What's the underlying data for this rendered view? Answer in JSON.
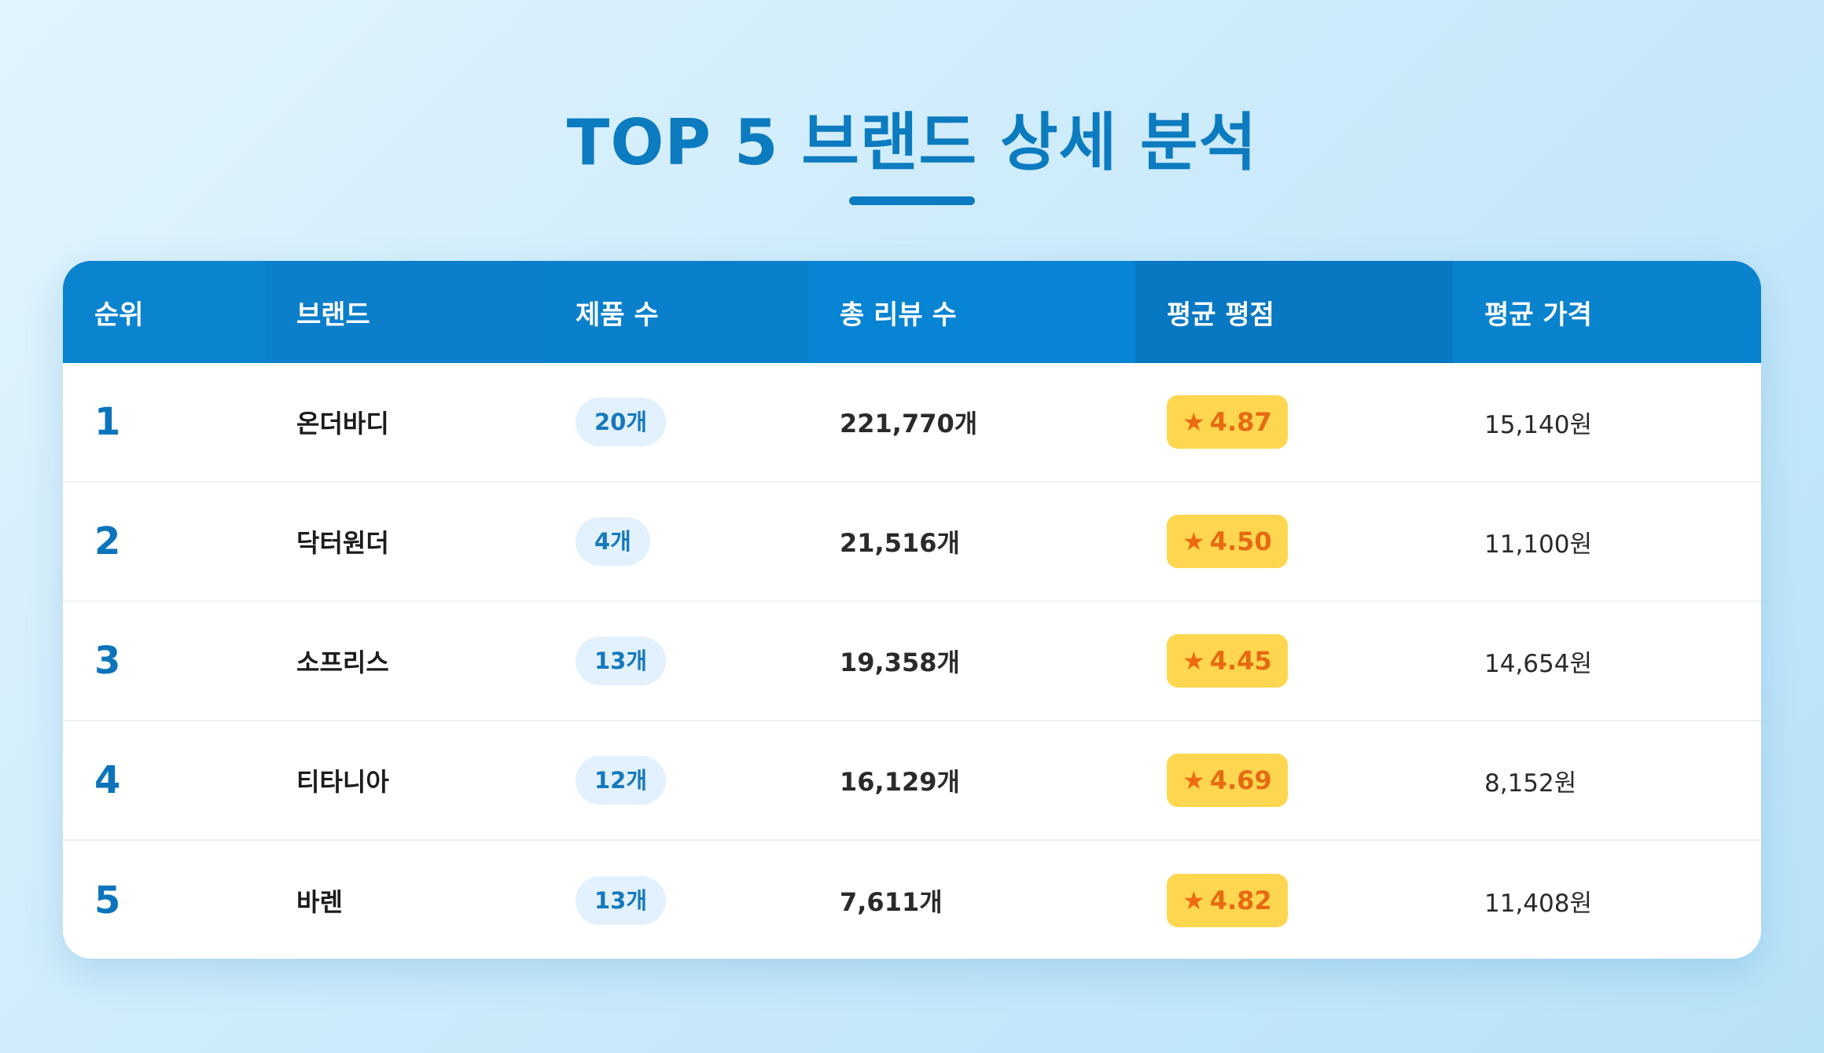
{
  "title": "TOP 5 브랜드 상세 분석",
  "headers": {
    "rank": "순위",
    "brand": "브랜드",
    "products": "제품 수",
    "reviews": "총 리뷰 수",
    "rating": "평균 평점",
    "price": "평균 가격"
  },
  "star_icon": "★",
  "colors": {
    "title": "#0c7bbf",
    "header_bg": "#0a83d0",
    "rating_bg": "#fed64f",
    "rating_text": "#e76a12",
    "pill_bg": "#e2f1fc",
    "pill_text": "#1679bd"
  },
  "rows": [
    {
      "rank": "1",
      "brand": "온더바디",
      "products": "20개",
      "reviews": "221,770개",
      "rating": "4.87",
      "price": "15,140원"
    },
    {
      "rank": "2",
      "brand": "닥터원더",
      "products": "4개",
      "reviews": "21,516개",
      "rating": "4.50",
      "price": "11,100원"
    },
    {
      "rank": "3",
      "brand": "소프리스",
      "products": "13개",
      "reviews": "19,358개",
      "rating": "4.45",
      "price": "14,654원"
    },
    {
      "rank": "4",
      "brand": "티타니아",
      "products": "12개",
      "reviews": "16,129개",
      "rating": "4.69",
      "price": "8,152원"
    },
    {
      "rank": "5",
      "brand": "바렌",
      "products": "13개",
      "reviews": "7,611개",
      "rating": "4.82",
      "price": "11,408원"
    }
  ]
}
